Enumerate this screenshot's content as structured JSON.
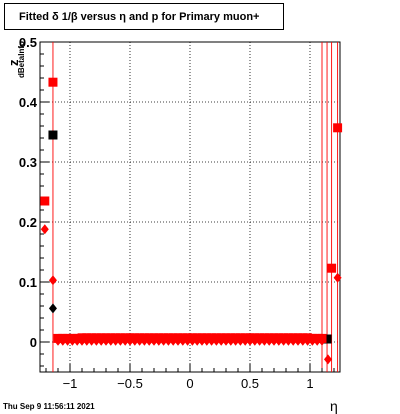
{
  "title": "Fitted δ 1/β versus η and p for Primary muon+",
  "footer": {
    "timestamp": "Thu Sep  9 11:56:11 2021"
  },
  "chart_data": {
    "type": "scatter",
    "title": "Fitted δ 1/β versus η and p for Primary muon+",
    "xlabel": "η",
    "ylabel": "z",
    "ylabel_subscript": "dBetaInfo",
    "xlim": [
      -1.25,
      1.25
    ],
    "ylim": [
      -0.05,
      0.5
    ],
    "xticks": [
      -1,
      -0.5,
      0,
      0.5,
      1
    ],
    "xtick_labels": [
      "−1",
      "−0.5",
      "0",
      "0.5",
      "1"
    ],
    "yticks": [
      0,
      0.1,
      0.2,
      0.3,
      0.4,
      0.5
    ],
    "ytick_labels": [
      "0",
      "0.1",
      "0.2",
      "0.3",
      "0.4",
      "0.5"
    ],
    "grid": true,
    "series": [
      {
        "marker": "square",
        "color": "#000000",
        "x": [
          -1.142,
          1.142
        ],
        "y": [
          0.345,
          0.005
        ]
      },
      {
        "marker": "diamond",
        "color": "#000000",
        "x": [
          -1.142
        ],
        "y": [
          0.056
        ]
      },
      {
        "marker": "square",
        "color": "#ff0000",
        "x": [
          -1.21,
          -1.142,
          -1.1,
          -1.06,
          -1.02,
          -0.98,
          -0.94,
          -0.9,
          -0.86,
          -0.82,
          -0.78,
          -0.74,
          -0.7,
          -0.66,
          -0.62,
          -0.58,
          -0.54,
          -0.5,
          -0.46,
          -0.42,
          -0.38,
          -0.34,
          -0.3,
          -0.26,
          -0.22,
          -0.18,
          -0.14,
          -0.1,
          -0.06,
          -0.02,
          0.02,
          0.06,
          0.1,
          0.14,
          0.18,
          0.22,
          0.26,
          0.3,
          0.34,
          0.38,
          0.42,
          0.46,
          0.5,
          0.54,
          0.58,
          0.62,
          0.66,
          0.7,
          0.74,
          0.78,
          0.82,
          0.86,
          0.9,
          0.94,
          0.98,
          1.02,
          1.06,
          1.1,
          1.18,
          1.23
        ],
        "y": [
          0.235,
          0.433,
          0.006,
          0.006,
          0.006,
          0.006,
          0.006,
          0.007,
          0.007,
          0.007,
          0.007,
          0.007,
          0.007,
          0.007,
          0.007,
          0.007,
          0.007,
          0.007,
          0.007,
          0.007,
          0.007,
          0.007,
          0.007,
          0.007,
          0.007,
          0.007,
          0.007,
          0.007,
          0.007,
          0.007,
          0.007,
          0.007,
          0.007,
          0.007,
          0.007,
          0.007,
          0.007,
          0.007,
          0.007,
          0.007,
          0.007,
          0.007,
          0.007,
          0.007,
          0.007,
          0.007,
          0.007,
          0.007,
          0.007,
          0.007,
          0.007,
          0.007,
          0.007,
          0.007,
          0.007,
          0.006,
          0.006,
          0.006,
          0.123,
          0.357
        ]
      },
      {
        "marker": "diamond",
        "color": "#ff0000",
        "x": [
          -1.21,
          -1.142,
          -1.1,
          -1.06,
          -1.02,
          -0.98,
          -0.94,
          -0.9,
          -0.86,
          -0.82,
          -0.78,
          -0.74,
          -0.7,
          -0.66,
          -0.62,
          -0.58,
          -0.54,
          -0.5,
          -0.46,
          -0.42,
          -0.38,
          -0.34,
          -0.3,
          -0.26,
          -0.22,
          -0.18,
          -0.14,
          -0.1,
          -0.06,
          -0.02,
          0.02,
          0.06,
          0.1,
          0.14,
          0.18,
          0.22,
          0.26,
          0.3,
          0.34,
          0.38,
          0.42,
          0.46,
          0.5,
          0.54,
          0.58,
          0.62,
          0.66,
          0.7,
          0.74,
          0.78,
          0.82,
          0.86,
          0.9,
          0.94,
          0.98,
          1.02,
          1.06,
          1.1,
          1.15,
          1.23
        ],
        "y": [
          0.188,
          0.103,
          0.002,
          0.002,
          0.002,
          0.002,
          0.002,
          0.002,
          0.002,
          0.002,
          0.002,
          0.002,
          0.002,
          0.002,
          0.002,
          0.002,
          0.002,
          0.002,
          0.002,
          0.002,
          0.002,
          0.002,
          0.002,
          0.002,
          0.002,
          0.002,
          0.002,
          0.002,
          0.002,
          0.002,
          0.002,
          0.002,
          0.002,
          0.002,
          0.002,
          0.002,
          0.002,
          0.002,
          0.002,
          0.002,
          0.002,
          0.002,
          0.002,
          0.002,
          0.002,
          0.002,
          0.002,
          0.002,
          0.002,
          0.002,
          0.002,
          0.002,
          0.002,
          0.002,
          0.002,
          0.002,
          0.002,
          0.002,
          -0.029,
          0.107
        ]
      }
    ],
    "vertical_lines": {
      "color": "#ff0000",
      "x": [
        -1.142,
        1.1,
        1.142,
        1.18,
        1.23
      ]
    }
  }
}
